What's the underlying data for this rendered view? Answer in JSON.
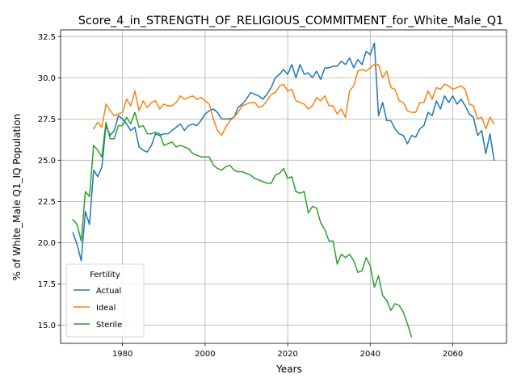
{
  "chart_data": {
    "type": "line",
    "title": "Score_4_in_STRENGTH_OF_RELIGIOUS_COMMITMENT_for_White_Male_Q1",
    "xlabel": "Years",
    "ylabel": "% of White_Male Q1_IQ Population",
    "xlim": [
      1965,
      2073
    ],
    "ylim": [
      13.9,
      32.9
    ],
    "xticks": [
      1980,
      2000,
      2020,
      2040,
      2060
    ],
    "yticks": [
      15.0,
      17.5,
      20.0,
      22.5,
      25.0,
      27.5,
      30.0,
      32.5
    ],
    "grid": true,
    "legend": {
      "title": "Fertility",
      "placement": "lower-left"
    },
    "series": [
      {
        "name": "Actual",
        "color": "#1f77b4",
        "x": [
          1968,
          1969,
          1970,
          1971,
          1972,
          1973,
          1974,
          1975,
          1976,
          1977,
          1978,
          1979,
          1980,
          1981,
          1982,
          1983,
          1984,
          1985,
          1986,
          1987,
          1988,
          1989,
          1990,
          1991,
          1992,
          1993,
          1994,
          1995,
          1996,
          1997,
          1998,
          1999,
          2000,
          2001,
          2002,
          2003,
          2004,
          2005,
          2006,
          2007,
          2008,
          2009,
          2010,
          2011,
          2012,
          2013,
          2014,
          2015,
          2016,
          2017,
          2018,
          2019,
          2020,
          2021,
          2022,
          2023,
          2024,
          2025,
          2026,
          2027,
          2028,
          2029,
          2030,
          2031,
          2032,
          2033,
          2034,
          2035,
          2036,
          2037,
          2038,
          2039,
          2040,
          2041,
          2042,
          2043,
          2044,
          2045,
          2046,
          2047,
          2048,
          2049,
          2050,
          2051,
          2052,
          2053,
          2054,
          2055,
          2056,
          2057,
          2058,
          2059,
          2060,
          2061,
          2062,
          2063,
          2064,
          2065,
          2066,
          2067,
          2068,
          2069,
          2070
        ],
        "values": [
          20.6,
          19.9,
          18.9,
          21.9,
          21.1,
          24.4,
          24.0,
          24.6,
          27.1,
          26.5,
          26.8,
          27.7,
          27.5,
          27.2,
          26.8,
          27.0,
          25.8,
          25.6,
          25.5,
          25.9,
          26.6,
          26.5,
          26.6,
          26.6,
          26.8,
          27.0,
          27.2,
          26.8,
          27.1,
          27.2,
          27.1,
          27.4,
          27.8,
          28.0,
          28.1,
          27.9,
          27.5,
          27.5,
          27.5,
          27.6,
          28.2,
          28.4,
          28.7,
          29.1,
          29.0,
          28.9,
          28.7,
          29.0,
          29.4,
          30.0,
          30.2,
          30.5,
          30.2,
          30.8,
          30.0,
          30.8,
          30.2,
          30.3,
          30.0,
          30.4,
          29.9,
          30.6,
          30.6,
          30.7,
          30.7,
          31.0,
          30.8,
          31.2,
          30.6,
          31.1,
          30.8,
          31.6,
          31.4,
          32.1,
          27.7,
          28.5,
          27.4,
          27.4,
          26.9,
          26.6,
          26.5,
          26.0,
          26.5,
          26.4,
          26.9,
          27.1,
          27.9,
          27.7,
          28.6,
          28.1,
          28.9,
          28.5,
          28.9,
          28.4,
          28.7,
          28.3,
          27.8,
          27.6,
          26.5,
          26.8,
          25.4,
          26.6,
          25.0
        ]
      },
      {
        "name": "Ideal",
        "color": "#ff7f0e",
        "x": [
          1968,
          1969,
          1970,
          1971,
          1972,
          1973,
          1974,
          1975,
          1976,
          1977,
          1978,
          1979,
          1980,
          1981,
          1982,
          1983,
          1984,
          1985,
          1986,
          1987,
          1988,
          1989,
          1990,
          1991,
          1992,
          1993,
          1994,
          1995,
          1996,
          1997,
          1998,
          1999,
          2000,
          2001,
          2002,
          2003,
          2004,
          2005,
          2006,
          2007,
          2008,
          2009,
          2010,
          2011,
          2012,
          2013,
          2014,
          2015,
          2016,
          2017,
          2018,
          2019,
          2020,
          2021,
          2022,
          2023,
          2024,
          2025,
          2026,
          2027,
          2028,
          2029,
          2030,
          2031,
          2032,
          2033,
          2034,
          2035,
          2036,
          2037,
          2038,
          2039,
          2040,
          2041,
          2042,
          2043,
          2044,
          2045,
          2046,
          2047,
          2048,
          2049,
          2050,
          2051,
          2052,
          2053,
          2054,
          2055,
          2056,
          2057,
          2058,
          2059,
          2060,
          2061,
          2062,
          2063,
          2064,
          2065,
          2066,
          2067,
          2068,
          2069,
          2070
        ],
        "values": [
          null,
          null,
          null,
          null,
          null,
          26.9,
          27.3,
          27.0,
          28.4,
          28.0,
          27.7,
          27.8,
          27.9,
          28.7,
          28.3,
          29.2,
          28.0,
          28.6,
          28.2,
          28.5,
          28.6,
          28.1,
          28.4,
          28.3,
          28.3,
          28.5,
          28.9,
          28.7,
          28.8,
          28.9,
          28.7,
          28.8,
          28.6,
          28.4,
          27.5,
          26.8,
          26.5,
          27.0,
          27.4,
          27.6,
          27.9,
          28.3,
          28.4,
          28.5,
          28.5,
          28.2,
          28.3,
          28.6,
          29.0,
          29.1,
          29.5,
          29.6,
          29.2,
          29.3,
          28.6,
          28.5,
          28.4,
          28.1,
          28.3,
          28.8,
          28.6,
          28.9,
          28.3,
          28.3,
          27.8,
          28.1,
          27.6,
          29.2,
          29.5,
          30.4,
          30.5,
          30.4,
          30.6,
          30.8,
          30.8,
          30.0,
          30.4,
          29.4,
          29.3,
          28.6,
          28.5,
          28.0,
          27.9,
          27.9,
          28.5,
          28.5,
          29.2,
          28.7,
          29.4,
          29.3,
          29.6,
          29.5,
          29.3,
          29.4,
          29.5,
          29.3,
          28.4,
          28.3,
          27.5,
          27.6,
          26.9,
          27.6,
          27.2
        ]
      },
      {
        "name": "Sterile",
        "color": "#2ca02c",
        "x": [
          1968,
          1969,
          1970,
          1971,
          1972,
          1973,
          1974,
          1975,
          1976,
          1977,
          1978,
          1979,
          1980,
          1981,
          1982,
          1983,
          1984,
          1985,
          1986,
          1987,
          1988,
          1989,
          1990,
          1991,
          1992,
          1993,
          1994,
          1995,
          1996,
          1997,
          1998,
          1999,
          2000,
          2001,
          2002,
          2003,
          2004,
          2005,
          2006,
          2007,
          2008,
          2009,
          2010,
          2011,
          2012,
          2013,
          2014,
          2015,
          2016,
          2017,
          2018,
          2019,
          2020,
          2021,
          2022,
          2023,
          2024,
          2025,
          2026,
          2027,
          2028,
          2029,
          2030,
          2031,
          2032,
          2033,
          2034,
          2035,
          2036,
          2037,
          2038,
          2039,
          2040,
          2041,
          2042,
          2043,
          2044,
          2045,
          2046,
          2047,
          2048,
          2049,
          2050
        ],
        "values": [
          21.4,
          21.1,
          20.1,
          23.1,
          22.8,
          25.9,
          25.6,
          25.2,
          27.3,
          26.3,
          26.3,
          27.1,
          27.1,
          27.6,
          27.2,
          27.9,
          27.0,
          27.1,
          26.6,
          26.6,
          26.7,
          26.6,
          25.9,
          26.0,
          26.1,
          25.8,
          25.9,
          25.8,
          25.7,
          25.4,
          25.3,
          25.2,
          25.2,
          25.2,
          24.7,
          24.5,
          24.4,
          24.6,
          24.7,
          24.4,
          24.3,
          24.3,
          24.2,
          24.1,
          23.9,
          23.8,
          23.7,
          23.6,
          23.6,
          24.1,
          24.2,
          24.5,
          23.9,
          24.0,
          23.1,
          23.0,
          23.1,
          21.8,
          22.2,
          22.1,
          21.2,
          20.8,
          20.1,
          20.1,
          18.7,
          19.3,
          19.1,
          19.3,
          18.9,
          18.2,
          18.3,
          19.1,
          18.6,
          17.3,
          18.0,
          16.8,
          16.5,
          15.9,
          16.3,
          16.2,
          15.8,
          15.1,
          14.3
        ]
      }
    ]
  }
}
